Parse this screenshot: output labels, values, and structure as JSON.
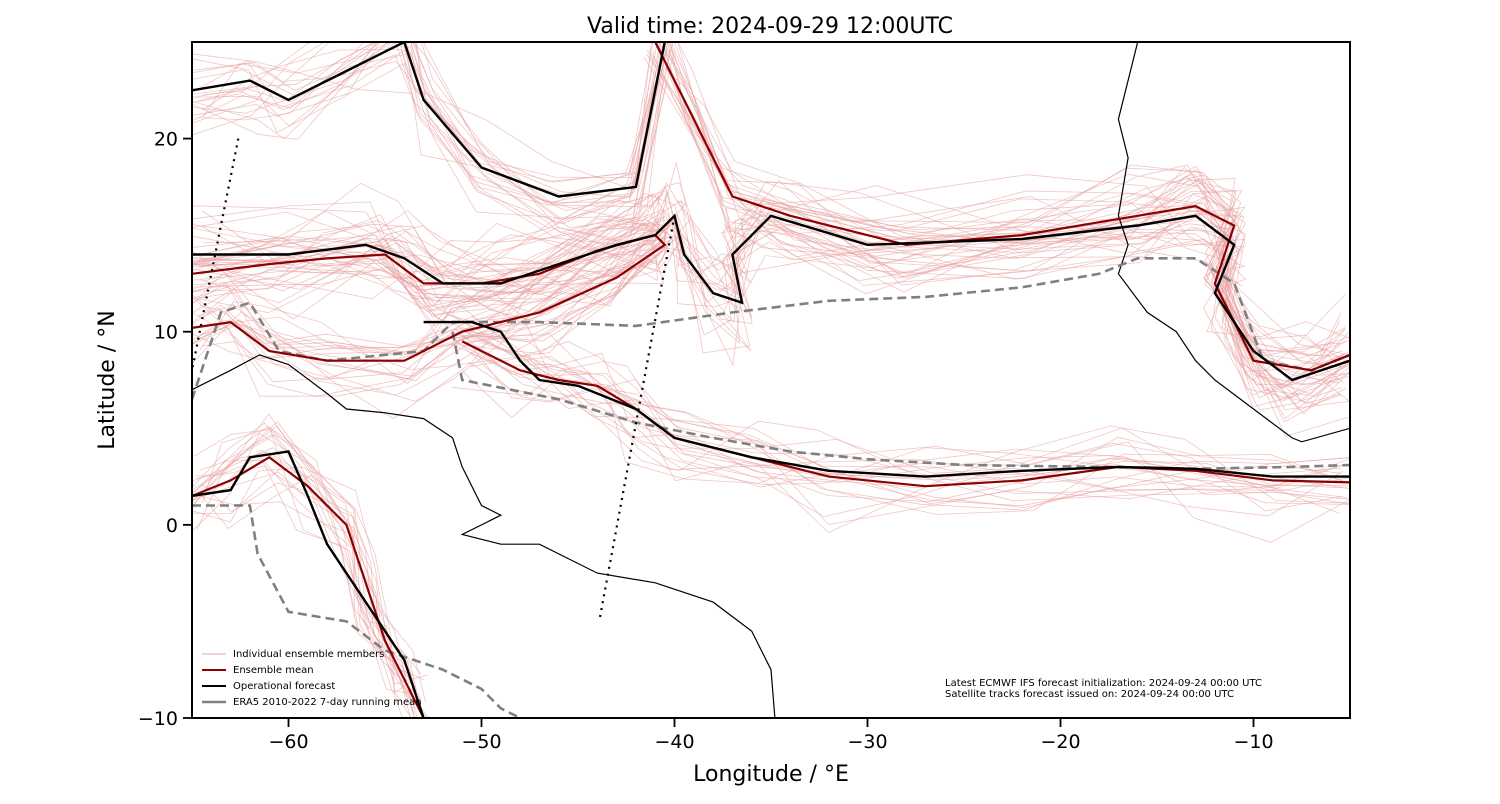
{
  "chart_data": {
    "type": "map",
    "title": "Valid time: 2024-09-29 12:00UTC",
    "xlabel": "Longitude / °E",
    "ylabel": "Latitude / °N",
    "xlim": [
      -65,
      -5
    ],
    "ylim": [
      -10,
      25
    ],
    "xticks": [
      -60,
      -50,
      -40,
      -30,
      -20,
      -10
    ],
    "yticks": [
      -10,
      0,
      10,
      20
    ],
    "xtick_labels": [
      "−60",
      "−50",
      "−40",
      "−30",
      "−20",
      "−10"
    ],
    "ytick_labels": [
      "−10",
      "0",
      "10",
      "20"
    ],
    "legend_position": "bottom-left",
    "legend": [
      {
        "label": "Individual ensemble members",
        "color": "#e8a0a0",
        "style": "thin"
      },
      {
        "label": "Ensemble mean",
        "color": "#8b0000",
        "style": "solid"
      },
      {
        "label": "Operational forecast",
        "color": "#000000",
        "style": "solid"
      },
      {
        "label": "ERA5 2010-2022 7-day running mean",
        "color": "#808080",
        "style": "solid"
      }
    ],
    "annotation": [
      "Latest ECMWF IFS forecast initialization: 2024-09-24 00:00 UTC",
      "Satellite tracks forecast issued on: 2024-09-24 00:00 UTC"
    ],
    "satellite_tracks": [
      [
        [
          -62.6,
          20.0
        ],
        [
          -65.0,
          8.0
        ]
      ],
      [
        [
          -40.0,
          16.0
        ],
        [
          -43.9,
          -5.0
        ]
      ]
    ],
    "era5_line": [
      [
        -65,
        1.0
      ],
      [
        -62,
        1.0
      ],
      [
        -61.6,
        -1.5
      ],
      [
        -60,
        -4.5
      ],
      [
        -57,
        -5.0
      ],
      [
        -55,
        -6.5
      ],
      [
        -52,
        -7.5
      ],
      [
        -50,
        -8.5
      ],
      [
        -49,
        -9.5
      ],
      [
        -48,
        -10
      ]
    ],
    "era5_line_north": [
      [
        -65,
        6.5
      ],
      [
        -63.5,
        11.0
      ],
      [
        -62,
        11.5
      ],
      [
        -60.5,
        9.0
      ],
      [
        -58,
        8.5
      ],
      [
        -53,
        9.0
      ],
      [
        -51.5,
        10.5
      ],
      [
        -47,
        10.5
      ],
      [
        -42,
        10.3
      ],
      [
        -37,
        11.0
      ],
      [
        -32,
        11.6
      ],
      [
        -27,
        11.8
      ],
      [
        -22,
        12.3
      ],
      [
        -18,
        13.0
      ],
      [
        -16,
        13.8
      ],
      [
        -13,
        13.8
      ],
      [
        -11,
        12.5
      ],
      [
        -9.5,
        8.5
      ],
      [
        -7,
        8.0
      ],
      [
        -5,
        8.8
      ]
    ],
    "era5_line_south": [
      [
        -51.5,
        10.0
      ],
      [
        -51.0,
        7.5
      ],
      [
        -46,
        6.5
      ],
      [
        -42,
        5.3
      ],
      [
        -38,
        4.5
      ],
      [
        -34,
        3.8
      ],
      [
        -30,
        3.4
      ],
      [
        -25,
        3.1
      ],
      [
        -18,
        3.0
      ],
      [
        -13,
        2.9
      ],
      [
        -8,
        3.0
      ],
      [
        -5,
        3.1
      ]
    ],
    "ensemble_mean": [
      [
        -65,
        13.0
      ],
      [
        -61,
        13.5
      ],
      [
        -58,
        13.8
      ],
      [
        -55,
        14.0
      ],
      [
        -53,
        12.5
      ],
      [
        -50,
        12.5
      ],
      [
        -47,
        13.0
      ],
      [
        -44,
        14.2
      ],
      [
        -41,
        15.0
      ],
      [
        -40.5,
        14.5
      ],
      [
        -43,
        12.8
      ],
      [
        -47,
        11.0
      ],
      [
        -51,
        10.0
      ],
      [
        -54,
        8.5
      ],
      [
        -58,
        8.5
      ],
      [
        -61,
        9.0
      ],
      [
        -63,
        10.5
      ],
      [
        -65,
        10.2
      ]
    ],
    "ensemble_mean_2": [
      [
        -51,
        9.5
      ],
      [
        -48,
        8.0
      ],
      [
        -46,
        7.5
      ],
      [
        -44,
        7.2
      ],
      [
        -42,
        6.0
      ],
      [
        -40,
        4.5
      ],
      [
        -36,
        3.5
      ],
      [
        -32,
        2.5
      ],
      [
        -27,
        2.0
      ],
      [
        -22,
        2.3
      ],
      [
        -17,
        3.0
      ],
      [
        -13,
        2.8
      ],
      [
        -9,
        2.3
      ],
      [
        -5,
        2.2
      ]
    ],
    "ensemble_mean_3": [
      [
        -41,
        25
      ],
      [
        -39,
        21
      ],
      [
        -37,
        17
      ],
      [
        -34,
        16
      ],
      [
        -28,
        14.5
      ],
      [
        -22,
        15.0
      ],
      [
        -16,
        16.0
      ],
      [
        -13,
        16.5
      ],
      [
        -11,
        15.5
      ],
      [
        -12,
        12.5
      ],
      [
        -10,
        8.5
      ],
      [
        -7,
        8.0
      ],
      [
        -5,
        8.8
      ]
    ],
    "ensemble_mean_4": [
      [
        -65,
        1.5
      ],
      [
        -63,
        2.3
      ],
      [
        -61,
        3.5
      ],
      [
        -59,
        2.0
      ],
      [
        -57,
        0
      ],
      [
        -56,
        -3
      ],
      [
        -55,
        -6
      ],
      [
        -54,
        -8
      ],
      [
        -53,
        -10
      ]
    ],
    "operational_forecast": [
      [
        -53,
        10.5
      ],
      [
        -50.5,
        10.5
      ],
      [
        -49,
        10.0
      ],
      [
        -48,
        8.5
      ],
      [
        -47,
        7.5
      ],
      [
        -45,
        7.2
      ],
      [
        -42,
        6.0
      ],
      [
        -40,
        4.5
      ],
      [
        -36,
        3.5
      ],
      [
        -32,
        2.8
      ],
      [
        -27,
        2.5
      ],
      [
        -22,
        2.8
      ],
      [
        -17,
        3.0
      ],
      [
        -13,
        2.9
      ],
      [
        -9,
        2.5
      ],
      [
        -5,
        2.5
      ]
    ],
    "operational_forecast_2": [
      [
        -65,
        14.0
      ],
      [
        -60,
        14.0
      ],
      [
        -56,
        14.5
      ],
      [
        -54,
        13.8
      ],
      [
        -52,
        12.5
      ],
      [
        -49,
        12.5
      ],
      [
        -46,
        13.5
      ],
      [
        -43,
        14.5
      ],
      [
        -41,
        15.0
      ],
      [
        -40,
        16.0
      ],
      [
        -39.5,
        14.0
      ],
      [
        -38,
        12.0
      ],
      [
        -36.5,
        11.5
      ],
      [
        -37,
        14.0
      ],
      [
        -35,
        16.0
      ],
      [
        -30,
        14.5
      ],
      [
        -22,
        14.8
      ],
      [
        -16,
        15.5
      ],
      [
        -13,
        16.0
      ],
      [
        -11,
        14.5
      ],
      [
        -12,
        12.0
      ],
      [
        -10,
        9.0
      ],
      [
        -8,
        7.5
      ],
      [
        -5,
        8.5
      ]
    ],
    "operational_forecast_3": [
      [
        -65,
        22.5
      ],
      [
        -62,
        23.0
      ],
      [
        -60,
        22.0
      ],
      [
        -57,
        23.5
      ],
      [
        -54,
        25
      ],
      [
        -53,
        22.0
      ],
      [
        -50,
        18.5
      ],
      [
        -46,
        17.0
      ],
      [
        -42,
        17.5
      ],
      [
        -40.5,
        25
      ]
    ],
    "operational_forecast_4": [
      [
        -65,
        1.5
      ],
      [
        -63,
        1.8
      ],
      [
        -62,
        3.5
      ],
      [
        -60,
        3.8
      ],
      [
        -59,
        1.5
      ],
      [
        -58,
        -1
      ],
      [
        -56,
        -4
      ],
      [
        -54,
        -7
      ],
      [
        -53,
        -10
      ]
    ],
    "coastline_africa": [
      [
        -16.0,
        25
      ],
      [
        -17.0,
        21
      ],
      [
        -16.5,
        19
      ],
      [
        -17.0,
        16
      ],
      [
        -16.5,
        14.5
      ],
      [
        -17.0,
        13
      ],
      [
        -15.5,
        11
      ],
      [
        -14,
        10
      ],
      [
        -13,
        8.5
      ],
      [
        -12,
        7.5
      ],
      [
        -10,
        6
      ],
      [
        -8,
        4.5
      ],
      [
        -7.5,
        4.3
      ],
      [
        -5,
        5.0
      ]
    ],
    "coastline_south_america": [
      [
        -65,
        7.0
      ],
      [
        -63,
        8.0
      ],
      [
        -61.5,
        8.8
      ],
      [
        -60,
        8.3
      ],
      [
        -58,
        6.8
      ],
      [
        -57,
        6.0
      ],
      [
        -55,
        5.8
      ],
      [
        -53,
        5.5
      ],
      [
        -51.5,
        4.5
      ],
      [
        -51,
        3.0
      ],
      [
        -50,
        1.0
      ],
      [
        -49,
        0.5
      ],
      [
        -50,
        0.0
      ],
      [
        -51,
        -0.5
      ],
      [
        -49,
        -1.0
      ],
      [
        -47,
        -1.0
      ],
      [
        -44,
        -2.5
      ],
      [
        -41,
        -3.0
      ],
      [
        -38,
        -4.0
      ],
      [
        -36,
        -5.5
      ],
      [
        -35,
        -7.5
      ],
      [
        -34.8,
        -10
      ]
    ]
  }
}
